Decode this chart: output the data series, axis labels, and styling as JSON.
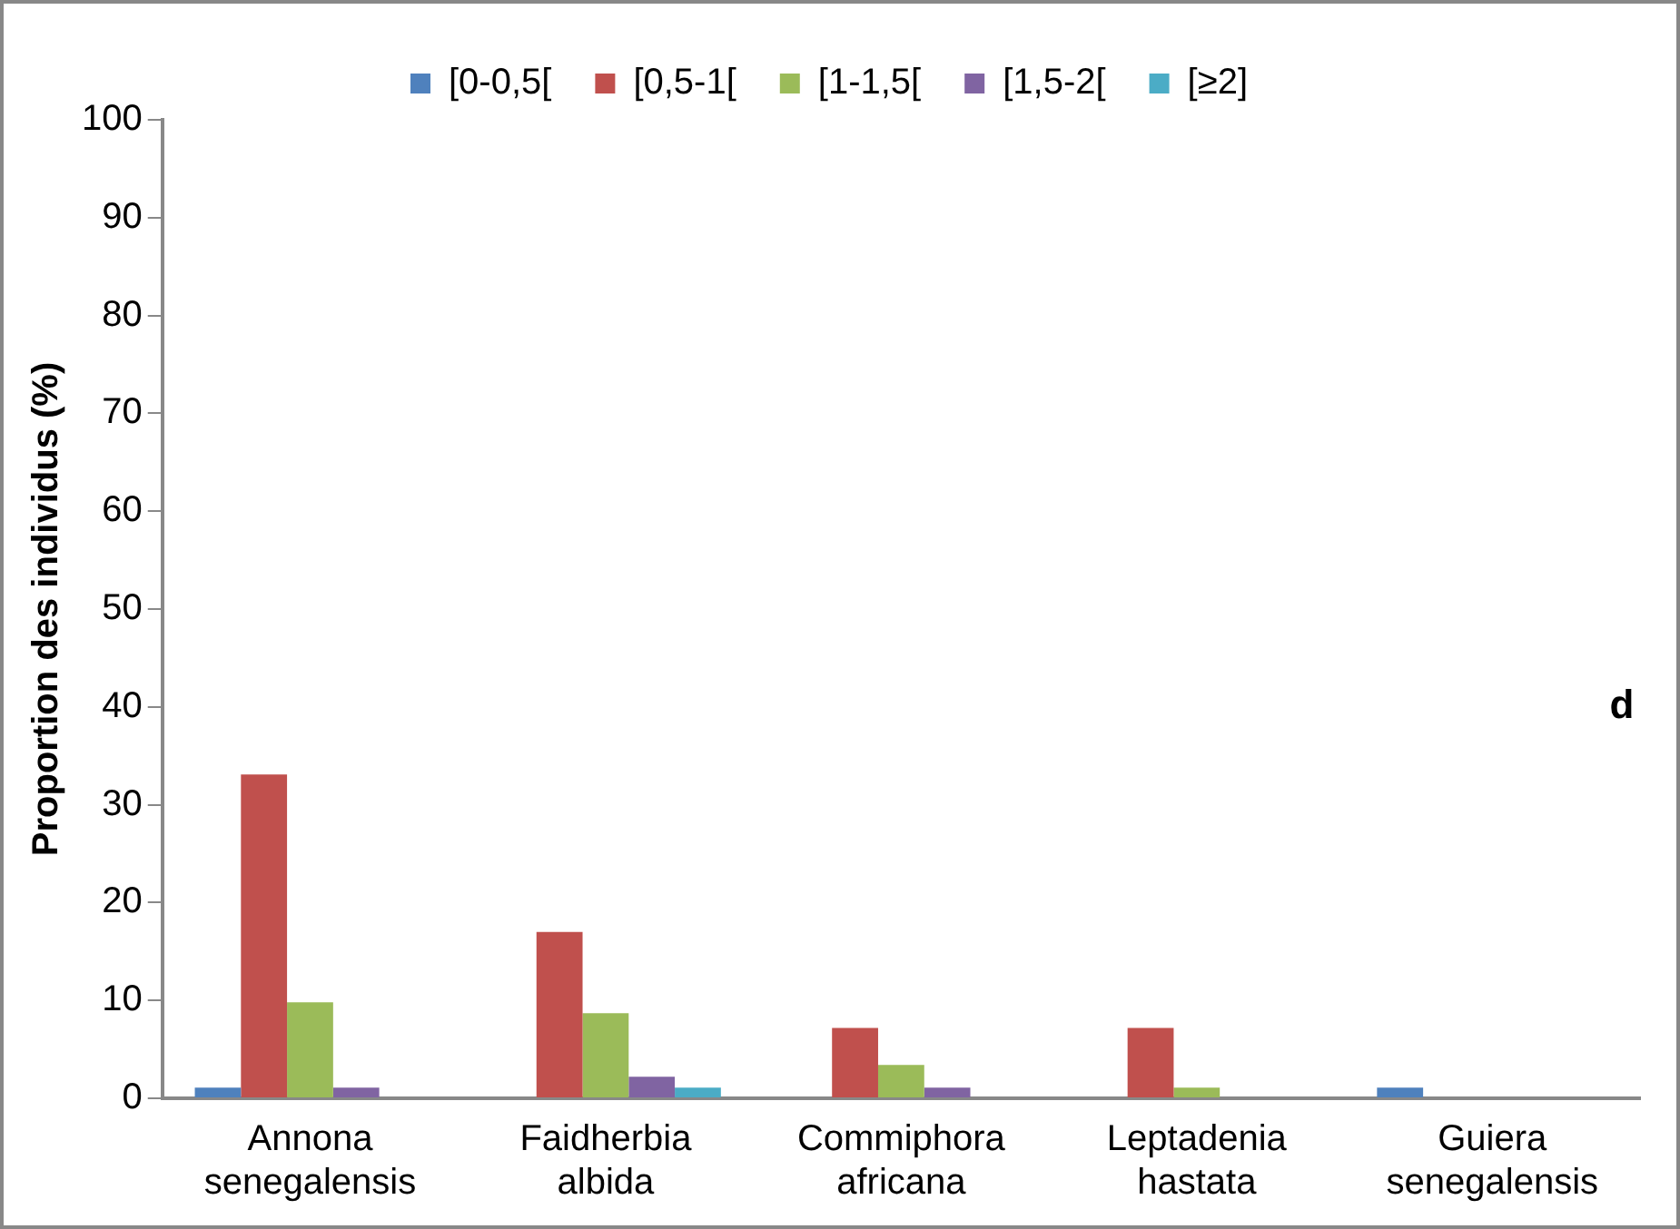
{
  "chart_data": {
    "type": "bar",
    "ylabel": "Proportion des individus (%)",
    "categories": [
      "Annona senegalensis",
      "Faidherbia albida",
      "Commiphora africana",
      "Leptadenia hastata",
      "Guiera senegalensis"
    ],
    "series": [
      {
        "name": "[0-0,5[",
        "color": "#4f81bd",
        "values": [
          1.1,
          0,
          0,
          0,
          1.1
        ]
      },
      {
        "name": "[0,5-1[",
        "color": "#c0504d",
        "values": [
          33.1,
          17,
          7.2,
          7.2,
          0
        ]
      },
      {
        "name": "[1-1,5[",
        "color": "#9bbb59",
        "values": [
          9.8,
          8.7,
          3.4,
          1.1,
          0
        ]
      },
      {
        "name": "[1,5-2[",
        "color": "#8064a2",
        "values": [
          1.1,
          2.2,
          1.1,
          0,
          0
        ]
      },
      {
        "name": "[≥2]",
        "color": "#4bacc6",
        "values": [
          0,
          1.1,
          0,
          0,
          0
        ]
      }
    ],
    "ylim": [
      0,
      100
    ],
    "yticks": [
      0,
      10,
      20,
      30,
      40,
      50,
      60,
      70,
      80,
      90,
      100
    ],
    "grid": false,
    "legend": "top",
    "annotations": [
      "d"
    ]
  }
}
